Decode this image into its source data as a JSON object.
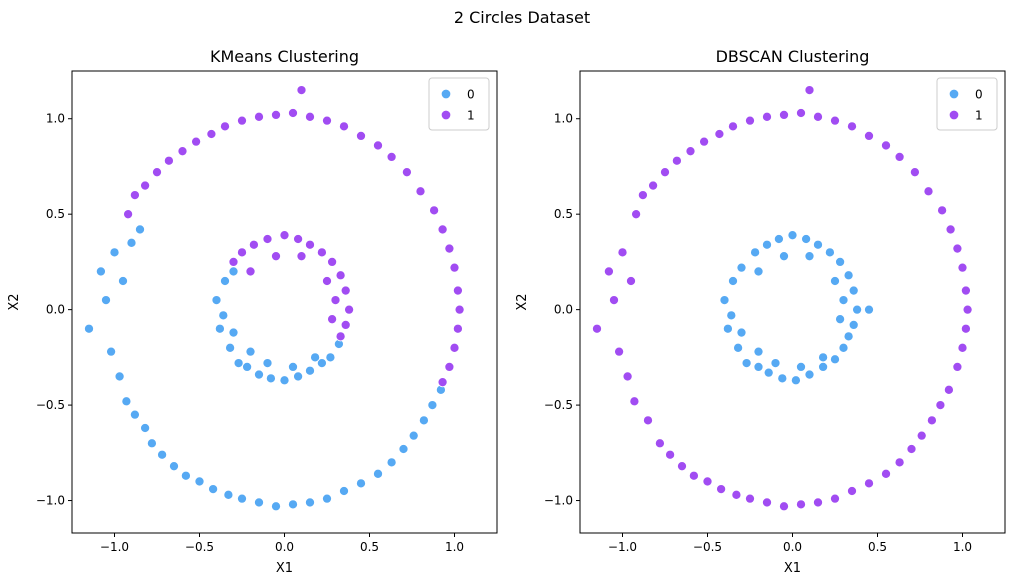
{
  "figure": {
    "suptitle": "2 Circles Dataset"
  },
  "colors": {
    "cluster_0": "#56a9f3",
    "cluster_1": "#a14cf2",
    "point_edge": "#ffffff"
  },
  "chart_data": [
    {
      "type": "scatter",
      "title": "KMeans Clustering",
      "xlabel": "X1",
      "ylabel": "X2",
      "xlim": [
        -1.25,
        1.25
      ],
      "ylim": [
        -1.17,
        1.25
      ],
      "xticks": [
        -1.0,
        -0.5,
        0.0,
        0.5,
        1.0
      ],
      "xtick_labels": [
        "−1.0",
        "−0.5",
        "0.0",
        "0.5",
        "1.0"
      ],
      "yticks": [
        -1.0,
        -0.5,
        0.0,
        0.5,
        1.0
      ],
      "ytick_labels": [
        "−1.0",
        "−0.5",
        "0.0",
        "0.5",
        "1.0"
      ],
      "grid": false,
      "legend": {
        "placement": "top-right",
        "entries": [
          "0",
          "1"
        ]
      },
      "series": [
        {
          "name": "0",
          "color": "#56a9f3",
          "points": [
            [
              -1.15,
              -0.1
            ],
            [
              -1.08,
              0.2
            ],
            [
              -1.05,
              0.05
            ],
            [
              -1.02,
              -0.22
            ],
            [
              -1.0,
              0.3
            ],
            [
              -0.97,
              -0.35
            ],
            [
              -0.95,
              0.15
            ],
            [
              -0.93,
              -0.48
            ],
            [
              -0.9,
              0.35
            ],
            [
              -0.88,
              -0.55
            ],
            [
              -0.85,
              0.42
            ],
            [
              -0.82,
              -0.62
            ],
            [
              -0.78,
              -0.7
            ],
            [
              -0.72,
              -0.76
            ],
            [
              -0.65,
              -0.82
            ],
            [
              -0.58,
              -0.87
            ],
            [
              -0.5,
              -0.9
            ],
            [
              -0.42,
              -0.94
            ],
            [
              -0.33,
              -0.97
            ],
            [
              -0.25,
              -0.99
            ],
            [
              -0.15,
              -1.01
            ],
            [
              -0.05,
              -1.03
            ],
            [
              0.05,
              -1.02
            ],
            [
              0.15,
              -1.01
            ],
            [
              0.25,
              -0.99
            ],
            [
              0.35,
              -0.95
            ],
            [
              0.45,
              -0.91
            ],
            [
              0.55,
              -0.86
            ],
            [
              0.63,
              -0.8
            ],
            [
              0.7,
              -0.73
            ],
            [
              0.76,
              -0.66
            ],
            [
              0.82,
              -0.58
            ],
            [
              0.87,
              -0.5
            ],
            [
              0.92,
              -0.42
            ],
            [
              -0.4,
              0.05
            ],
            [
              -0.38,
              -0.1
            ],
            [
              -0.35,
              0.15
            ],
            [
              -0.32,
              -0.2
            ],
            [
              -0.3,
              0.2
            ],
            [
              -0.27,
              -0.28
            ],
            [
              -0.22,
              -0.3
            ],
            [
              -0.15,
              -0.34
            ],
            [
              -0.08,
              -0.36
            ],
            [
              0.0,
              -0.37
            ],
            [
              0.08,
              -0.35
            ],
            [
              0.15,
              -0.32
            ],
            [
              0.22,
              -0.28
            ],
            [
              0.27,
              -0.25
            ],
            [
              0.32,
              -0.18
            ],
            [
              -0.36,
              -0.03
            ],
            [
              -0.3,
              -0.12
            ],
            [
              -0.2,
              -0.22
            ],
            [
              -0.1,
              -0.28
            ],
            [
              0.05,
              -0.3
            ],
            [
              0.18,
              -0.25
            ]
          ]
        },
        {
          "name": "1",
          "color": "#a14cf2",
          "points": [
            [
              -0.92,
              0.5
            ],
            [
              -0.88,
              0.6
            ],
            [
              -0.82,
              0.65
            ],
            [
              -0.75,
              0.72
            ],
            [
              -0.68,
              0.78
            ],
            [
              -0.6,
              0.83
            ],
            [
              -0.52,
              0.88
            ],
            [
              -0.43,
              0.92
            ],
            [
              -0.35,
              0.96
            ],
            [
              -0.25,
              0.99
            ],
            [
              -0.15,
              1.01
            ],
            [
              -0.05,
              1.02
            ],
            [
              0.05,
              1.03
            ],
            [
              0.1,
              1.15
            ],
            [
              0.15,
              1.01
            ],
            [
              0.25,
              0.99
            ],
            [
              0.35,
              0.96
            ],
            [
              0.45,
              0.91
            ],
            [
              0.55,
              0.86
            ],
            [
              0.63,
              0.8
            ],
            [
              0.72,
              0.72
            ],
            [
              0.8,
              0.62
            ],
            [
              0.88,
              0.52
            ],
            [
              0.93,
              0.42
            ],
            [
              0.97,
              0.32
            ],
            [
              1.0,
              0.22
            ],
            [
              1.02,
              0.1
            ],
            [
              1.03,
              0.0
            ],
            [
              1.02,
              -0.1
            ],
            [
              1.0,
              -0.2
            ],
            [
              0.97,
              -0.3
            ],
            [
              0.93,
              -0.38
            ],
            [
              -0.3,
              0.25
            ],
            [
              -0.25,
              0.3
            ],
            [
              -0.18,
              0.34
            ],
            [
              -0.1,
              0.37
            ],
            [
              0.0,
              0.39
            ],
            [
              0.08,
              0.37
            ],
            [
              0.15,
              0.34
            ],
            [
              0.22,
              0.3
            ],
            [
              0.28,
              0.25
            ],
            [
              0.33,
              0.18
            ],
            [
              0.36,
              0.1
            ],
            [
              0.38,
              0.0
            ],
            [
              0.36,
              -0.08
            ],
            [
              0.33,
              -0.14
            ],
            [
              -0.2,
              0.2
            ],
            [
              -0.05,
              0.28
            ],
            [
              0.1,
              0.28
            ],
            [
              0.25,
              0.15
            ],
            [
              0.3,
              0.05
            ],
            [
              0.28,
              -0.05
            ]
          ]
        }
      ]
    },
    {
      "type": "scatter",
      "title": "DBSCAN Clustering",
      "xlabel": "X1",
      "ylabel": "X2",
      "xlim": [
        -1.25,
        1.25
      ],
      "ylim": [
        -1.17,
        1.25
      ],
      "xticks": [
        -1.0,
        -0.5,
        0.0,
        0.5,
        1.0
      ],
      "xtick_labels": [
        "−1.0",
        "−0.5",
        "0.0",
        "0.5",
        "1.0"
      ],
      "yticks": [
        -1.0,
        -0.5,
        0.0,
        0.5,
        1.0
      ],
      "ytick_labels": [
        "−1.0",
        "−0.5",
        "0.0",
        "0.5",
        "1.0"
      ],
      "grid": false,
      "legend": {
        "placement": "top-right",
        "entries": [
          "0",
          "1"
        ]
      },
      "series": [
        {
          "name": "0",
          "color": "#56a9f3",
          "points": [
            [
              -0.4,
              0.05
            ],
            [
              -0.38,
              -0.1
            ],
            [
              -0.35,
              0.15
            ],
            [
              -0.32,
              -0.2
            ],
            [
              -0.3,
              0.22
            ],
            [
              -0.27,
              -0.28
            ],
            [
              -0.22,
              0.3
            ],
            [
              -0.15,
              0.34
            ],
            [
              -0.08,
              0.37
            ],
            [
              0.0,
              0.39
            ],
            [
              0.08,
              0.37
            ],
            [
              0.15,
              0.34
            ],
            [
              0.22,
              0.3
            ],
            [
              0.28,
              0.25
            ],
            [
              0.33,
              0.18
            ],
            [
              0.36,
              0.1
            ],
            [
              0.38,
              0.0
            ],
            [
              0.36,
              -0.08
            ],
            [
              0.33,
              -0.14
            ],
            [
              0.3,
              -0.2
            ],
            [
              0.25,
              -0.26
            ],
            [
              0.18,
              -0.3
            ],
            [
              0.1,
              -0.34
            ],
            [
              0.02,
              -0.37
            ],
            [
              -0.06,
              -0.36
            ],
            [
              -0.14,
              -0.33
            ],
            [
              -0.2,
              -0.3
            ],
            [
              0.45,
              0.0
            ],
            [
              -0.36,
              -0.03
            ],
            [
              -0.3,
              -0.12
            ],
            [
              -0.2,
              -0.22
            ],
            [
              -0.1,
              -0.28
            ],
            [
              0.05,
              -0.3
            ],
            [
              0.18,
              -0.25
            ],
            [
              -0.2,
              0.2
            ],
            [
              -0.05,
              0.28
            ],
            [
              0.1,
              0.28
            ],
            [
              0.25,
              0.15
            ],
            [
              0.3,
              0.05
            ],
            [
              0.28,
              -0.05
            ]
          ]
        },
        {
          "name": "1",
          "color": "#a14cf2",
          "points": [
            [
              -1.15,
              -0.1
            ],
            [
              -1.08,
              0.2
            ],
            [
              -1.05,
              0.05
            ],
            [
              -1.02,
              -0.22
            ],
            [
              -1.0,
              0.3
            ],
            [
              -0.97,
              -0.35
            ],
            [
              -0.95,
              0.15
            ],
            [
              -0.93,
              -0.48
            ],
            [
              -0.92,
              0.5
            ],
            [
              -0.88,
              0.6
            ],
            [
              -0.85,
              -0.58
            ],
            [
              -0.82,
              0.65
            ],
            [
              -0.78,
              -0.7
            ],
            [
              -0.75,
              0.72
            ],
            [
              -0.72,
              -0.76
            ],
            [
              -0.68,
              0.78
            ],
            [
              -0.65,
              -0.82
            ],
            [
              -0.6,
              0.83
            ],
            [
              -0.58,
              -0.87
            ],
            [
              -0.52,
              0.88
            ],
            [
              -0.5,
              -0.9
            ],
            [
              -0.43,
              0.92
            ],
            [
              -0.42,
              -0.94
            ],
            [
              -0.35,
              0.96
            ],
            [
              -0.33,
              -0.97
            ],
            [
              -0.25,
              0.99
            ],
            [
              -0.25,
              -0.99
            ],
            [
              -0.15,
              1.01
            ],
            [
              -0.15,
              -1.01
            ],
            [
              -0.05,
              1.02
            ],
            [
              -0.05,
              -1.03
            ],
            [
              0.05,
              1.03
            ],
            [
              0.05,
              -1.02
            ],
            [
              0.1,
              1.15
            ],
            [
              0.15,
              1.01
            ],
            [
              0.15,
              -1.01
            ],
            [
              0.25,
              0.99
            ],
            [
              0.25,
              -0.99
            ],
            [
              0.35,
              0.96
            ],
            [
              0.35,
              -0.95
            ],
            [
              0.45,
              0.91
            ],
            [
              0.45,
              -0.91
            ],
            [
              0.55,
              0.86
            ],
            [
              0.55,
              -0.86
            ],
            [
              0.63,
              0.8
            ],
            [
              0.63,
              -0.8
            ],
            [
              0.72,
              0.72
            ],
            [
              0.7,
              -0.73
            ],
            [
              0.8,
              0.62
            ],
            [
              0.76,
              -0.66
            ],
            [
              0.88,
              0.52
            ],
            [
              0.82,
              -0.58
            ],
            [
              0.93,
              0.42
            ],
            [
              0.87,
              -0.5
            ],
            [
              0.97,
              0.32
            ],
            [
              0.92,
              -0.42
            ],
            [
              1.0,
              0.22
            ],
            [
              0.97,
              -0.3
            ],
            [
              1.02,
              0.1
            ],
            [
              1.0,
              -0.2
            ],
            [
              1.03,
              0.0
            ],
            [
              1.02,
              -0.1
            ]
          ]
        }
      ]
    }
  ]
}
